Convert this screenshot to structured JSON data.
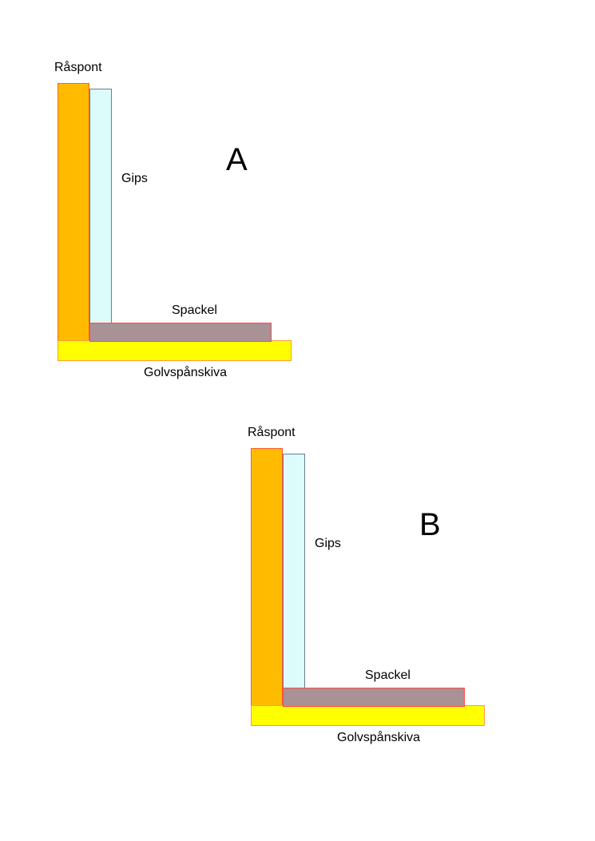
{
  "colors": {
    "raspont": "#ffbb00",
    "gips": "#dcfcfc",
    "spackel": "#a89296",
    "golvspanskiva": "#ffff00"
  },
  "figures": [
    {
      "letter": "A",
      "labels": {
        "raspont": "Råspont",
        "gips": "Gips",
        "spackel": "Spackel",
        "golvspanskiva": "Golvspånskiva"
      }
    },
    {
      "letter": "B",
      "labels": {
        "raspont": "Råspont",
        "gips": "Gips",
        "spackel": "Spackel",
        "golvspanskiva": "Golvspånskiva"
      }
    }
  ]
}
